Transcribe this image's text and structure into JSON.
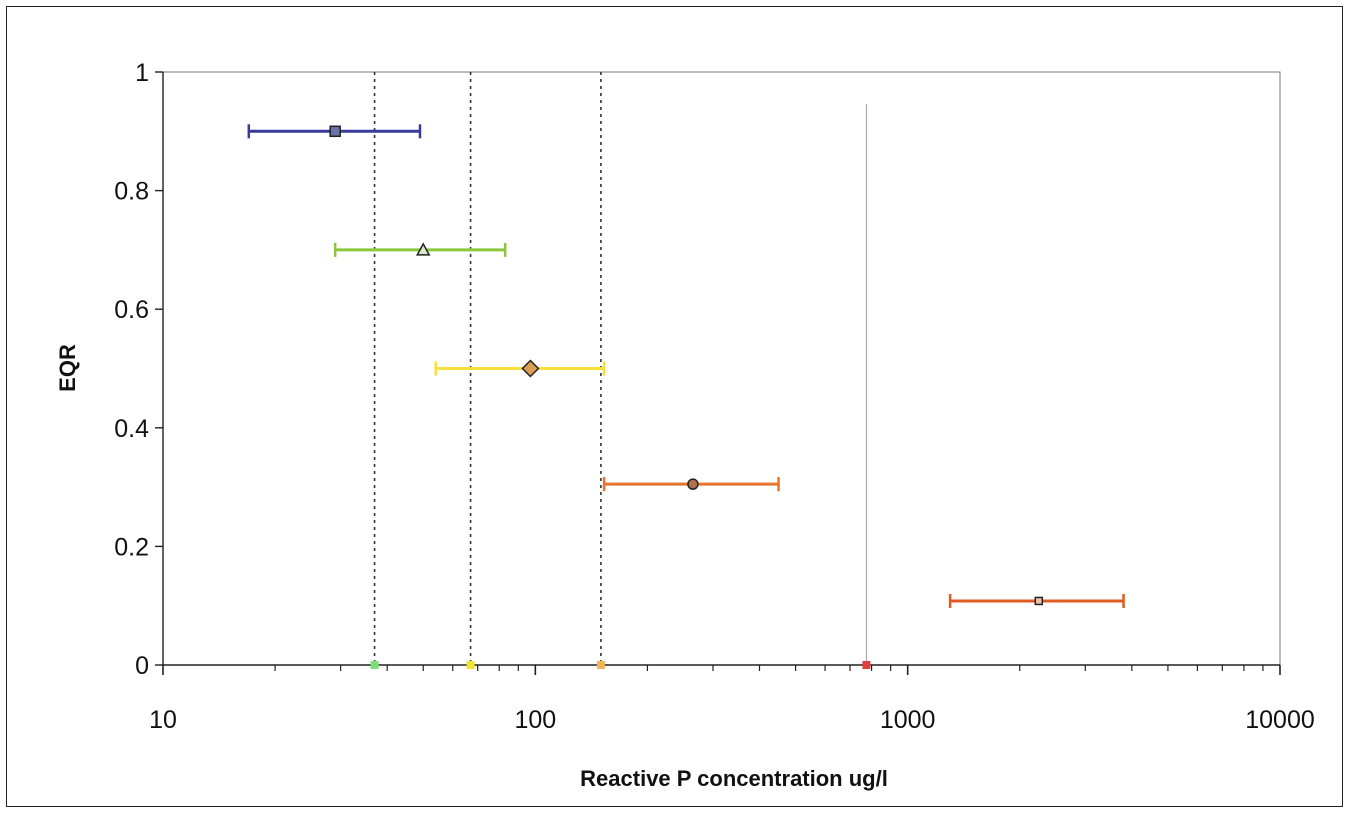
{
  "chart_data": {
    "type": "scatter",
    "title": "",
    "xlabel": "Reactive P concentration  ug/l",
    "ylabel": "EQR",
    "x_scale": "log",
    "xlim": [
      10,
      10000
    ],
    "ylim": [
      0,
      1
    ],
    "x_ticks": [
      10,
      100,
      1000,
      10000
    ],
    "x_tick_labels": [
      "10",
      "100",
      "1000",
      "10000"
    ],
    "y_ticks": [
      0,
      0.2,
      0.4,
      0.6,
      0.8,
      1
    ],
    "y_tick_labels": [
      "0",
      "0.2",
      "0.4",
      "0.6",
      "0.8",
      "1"
    ],
    "grid": false,
    "legend": "none",
    "boundaries": [
      {
        "x": 37,
        "style": "dotted",
        "marker_color": "#7be07b"
      },
      {
        "x": 67,
        "style": "dotted",
        "marker_color": "#f2e234"
      },
      {
        "x": 150,
        "style": "dotted",
        "marker_color": "#f2b45a"
      },
      {
        "x": 775,
        "style": "solid",
        "marker_color": "#e04040"
      }
    ],
    "points": [
      {
        "x": 29,
        "y": 0.9,
        "xerr": [
          17,
          49
        ],
        "marker": "square",
        "color": "#3a3a9a",
        "fill": "#6a72a8"
      },
      {
        "x": 50,
        "y": 0.7,
        "xerr": [
          29,
          83
        ],
        "marker": "triangle",
        "color": "#8cc63f",
        "fill": "#d8e8c8"
      },
      {
        "x": 97,
        "y": 0.5,
        "xerr": [
          54,
          153
        ],
        "marker": "diamond",
        "color": "#f7e03a",
        "fill": "#d9a055"
      },
      {
        "x": 265,
        "y": 0.305,
        "xerr": [
          153,
          450
        ],
        "marker": "circle",
        "color": "#e8732a",
        "fill": "#b07050"
      },
      {
        "x": 2250,
        "y": 0.108,
        "xerr": [
          1300,
          3800
        ],
        "marker": "square-small",
        "color": "#e05a24",
        "fill": "#f0c0a0"
      }
    ]
  }
}
